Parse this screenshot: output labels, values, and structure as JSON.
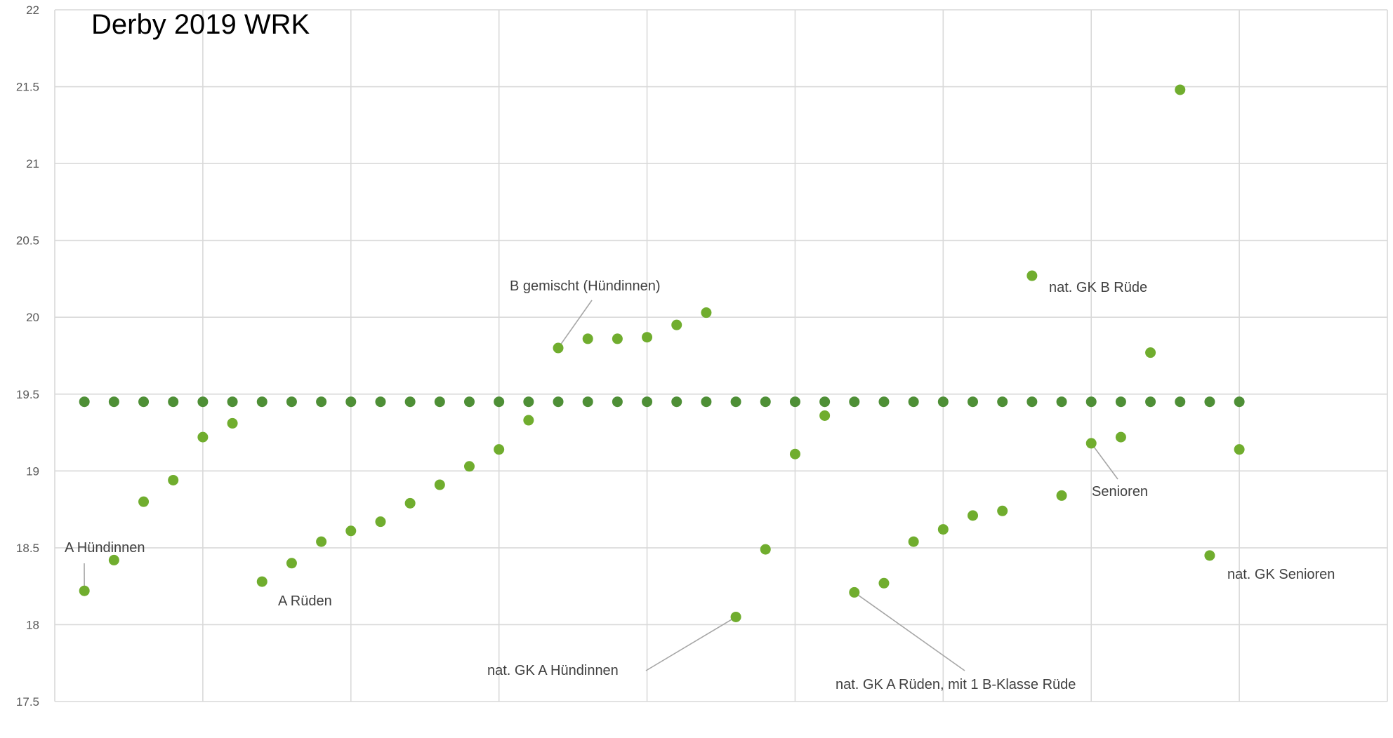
{
  "chart_data": {
    "type": "scatter",
    "title": "Derby 2019 WRK",
    "xlabel": "",
    "ylabel": "",
    "xlim": [
      0,
      45
    ],
    "ylim": [
      17.5,
      22
    ],
    "y_ticks": [
      "17.5",
      "18",
      "18.5",
      "19",
      "19.5",
      "20",
      "20.5",
      "21",
      "21.5",
      "22"
    ],
    "grid": "on",
    "legend": "none",
    "series": [
      {
        "color": "#70ad2e",
        "points": [
          {
            "x": 1,
            "y": 18.22
          },
          {
            "x": 2,
            "y": 18.42
          },
          {
            "x": 3,
            "y": 18.8
          },
          {
            "x": 4,
            "y": 18.94
          },
          {
            "x": 5,
            "y": 19.22
          },
          {
            "x": 6,
            "y": 19.31
          },
          {
            "x": 7,
            "y": 18.28
          },
          {
            "x": 8,
            "y": 18.4
          },
          {
            "x": 9,
            "y": 18.54
          },
          {
            "x": 10,
            "y": 18.61
          },
          {
            "x": 11,
            "y": 18.67
          },
          {
            "x": 12,
            "y": 18.79
          },
          {
            "x": 13,
            "y": 18.91
          },
          {
            "x": 14,
            "y": 19.03
          },
          {
            "x": 15,
            "y": 19.14
          },
          {
            "x": 16,
            "y": 19.33
          },
          {
            "x": 17,
            "y": 19.8
          },
          {
            "x": 18,
            "y": 19.86
          },
          {
            "x": 19,
            "y": 19.86
          },
          {
            "x": 20,
            "y": 19.87
          },
          {
            "x": 21,
            "y": 19.95
          },
          {
            "x": 22,
            "y": 20.03
          },
          {
            "x": 23,
            "y": 18.05
          },
          {
            "x": 24,
            "y": 18.49
          },
          {
            "x": 25,
            "y": 19.11
          },
          {
            "x": 26,
            "y": 19.36
          },
          {
            "x": 27,
            "y": 18.21
          },
          {
            "x": 28,
            "y": 18.27
          },
          {
            "x": 29,
            "y": 18.54
          },
          {
            "x": 30,
            "y": 18.62
          },
          {
            "x": 31,
            "y": 18.71
          },
          {
            "x": 32,
            "y": 18.74
          },
          {
            "x": 33,
            "y": 20.27
          },
          {
            "x": 34,
            "y": 18.84
          },
          {
            "x": 35,
            "y": 19.18
          },
          {
            "x": 36,
            "y": 19.22
          },
          {
            "x": 37,
            "y": 19.77
          },
          {
            "x": 38,
            "y": 21.48
          },
          {
            "x": 39,
            "y": 18.45
          },
          {
            "x": 40,
            "y": 19.14
          }
        ]
      },
      {
        "color": "#4e8f36",
        "points": [
          {
            "x": 1,
            "y": 19.45
          },
          {
            "x": 2,
            "y": 19.45
          },
          {
            "x": 3,
            "y": 19.45
          },
          {
            "x": 4,
            "y": 19.45
          },
          {
            "x": 5,
            "y": 19.45
          },
          {
            "x": 6,
            "y": 19.45
          },
          {
            "x": 7,
            "y": 19.45
          },
          {
            "x": 8,
            "y": 19.45
          },
          {
            "x": 9,
            "y": 19.45
          },
          {
            "x": 10,
            "y": 19.45
          },
          {
            "x": 11,
            "y": 19.45
          },
          {
            "x": 12,
            "y": 19.45
          },
          {
            "x": 13,
            "y": 19.45
          },
          {
            "x": 14,
            "y": 19.45
          },
          {
            "x": 15,
            "y": 19.45
          },
          {
            "x": 16,
            "y": 19.45
          },
          {
            "x": 17,
            "y": 19.45
          },
          {
            "x": 18,
            "y": 19.45
          },
          {
            "x": 19,
            "y": 19.45
          },
          {
            "x": 20,
            "y": 19.45
          },
          {
            "x": 21,
            "y": 19.45
          },
          {
            "x": 22,
            "y": 19.45
          },
          {
            "x": 23,
            "y": 19.45
          },
          {
            "x": 24,
            "y": 19.45
          },
          {
            "x": 25,
            "y": 19.45
          },
          {
            "x": 26,
            "y": 19.45
          },
          {
            "x": 27,
            "y": 19.45
          },
          {
            "x": 28,
            "y": 19.45
          },
          {
            "x": 29,
            "y": 19.45
          },
          {
            "x": 30,
            "y": 19.45
          },
          {
            "x": 31,
            "y": 19.45
          },
          {
            "x": 32,
            "y": 19.45
          },
          {
            "x": 33,
            "y": 19.45
          },
          {
            "x": 34,
            "y": 19.45
          },
          {
            "x": 35,
            "y": 19.45
          },
          {
            "x": 36,
            "y": 19.45
          },
          {
            "x": 37,
            "y": 19.45
          },
          {
            "x": 38,
            "y": 19.45
          },
          {
            "x": 39,
            "y": 19.45
          },
          {
            "x": 40,
            "y": 19.45
          }
        ]
      }
    ],
    "annotations": [
      {
        "text": "A Hündinnen",
        "x": 1,
        "y": 18.22
      },
      {
        "text": "A Rüden",
        "x": 7,
        "y": 18.28
      },
      {
        "text": "B gemischt (Hündinnen)",
        "x": 17,
        "y": 19.8
      },
      {
        "text": "nat. GK A Hündinnen",
        "x": 23,
        "y": 18.05
      },
      {
        "text": "nat. GK A Rüden, mit 1 B-Klasse Rüde",
        "x": 27,
        "y": 18.21
      },
      {
        "text": "nat. GK B Rüde",
        "x": 33,
        "y": 20.27
      },
      {
        "text": "Senioren",
        "x": 35,
        "y": 19.18
      },
      {
        "text": "nat. GK Senioren",
        "x": 39,
        "y": 18.45
      }
    ]
  }
}
